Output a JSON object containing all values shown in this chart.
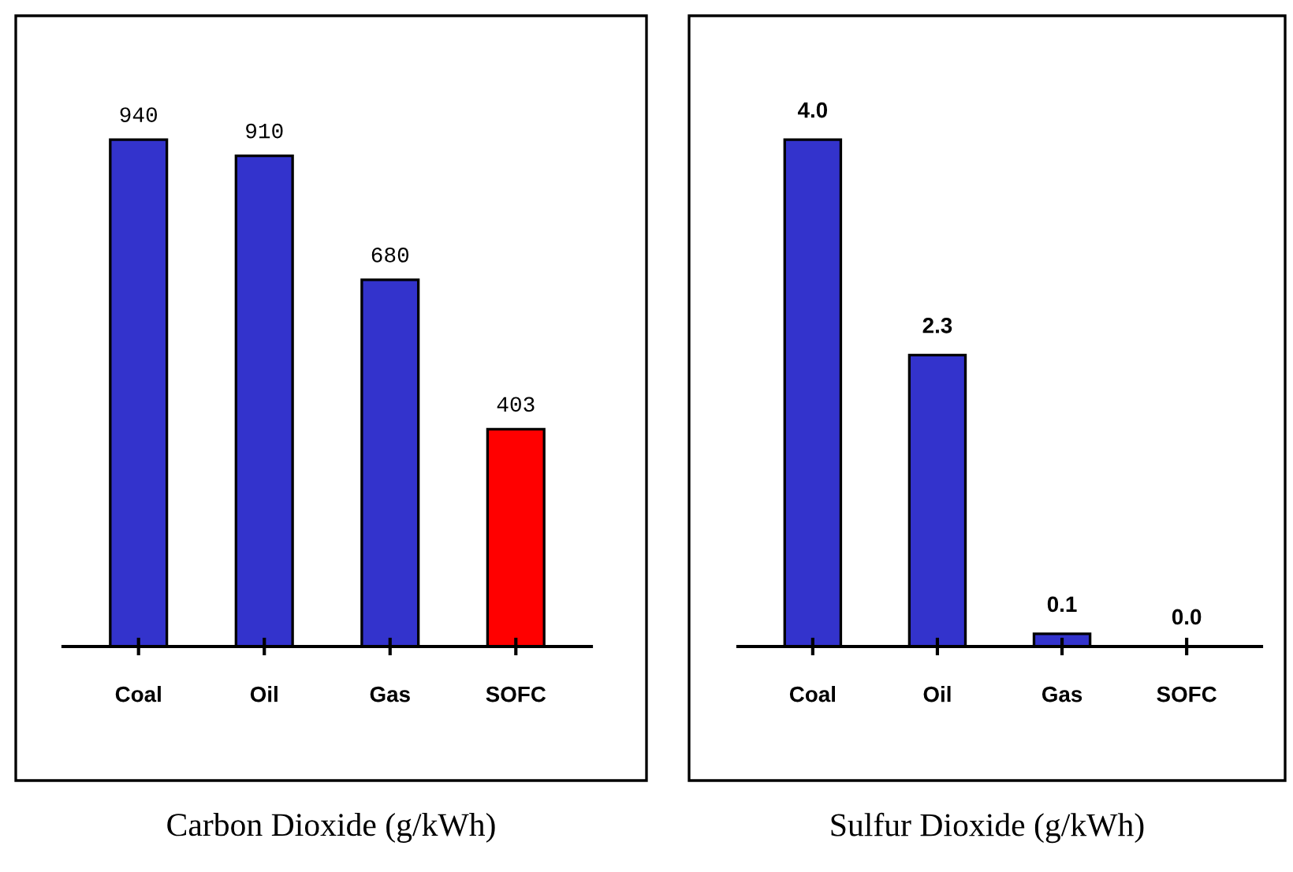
{
  "chart_data": [
    {
      "type": "bar",
      "title": "Carbon Dioxide (g/kWh)",
      "categories": [
        "Coal",
        "Oil",
        "Gas",
        "SOFC"
      ],
      "values": [
        940,
        910,
        680,
        403
      ],
      "colors": [
        "#3333cc",
        "#3333cc",
        "#3333cc",
        "#ff0000"
      ],
      "data_labels": true
    },
    {
      "type": "bar",
      "title": "Sulfur Dioxide (g/kWh)",
      "categories": [
        "Coal",
        "Oil",
        "Gas",
        "SOFC"
      ],
      "values": [
        4.0,
        2.3,
        0.1,
        0.0
      ],
      "colors": [
        "#3333cc",
        "#3333cc",
        "#3333cc",
        "#3333cc"
      ],
      "value_labels": [
        "4.0",
        "2.3",
        "0.1",
        "0.0"
      ]
    }
  ]
}
